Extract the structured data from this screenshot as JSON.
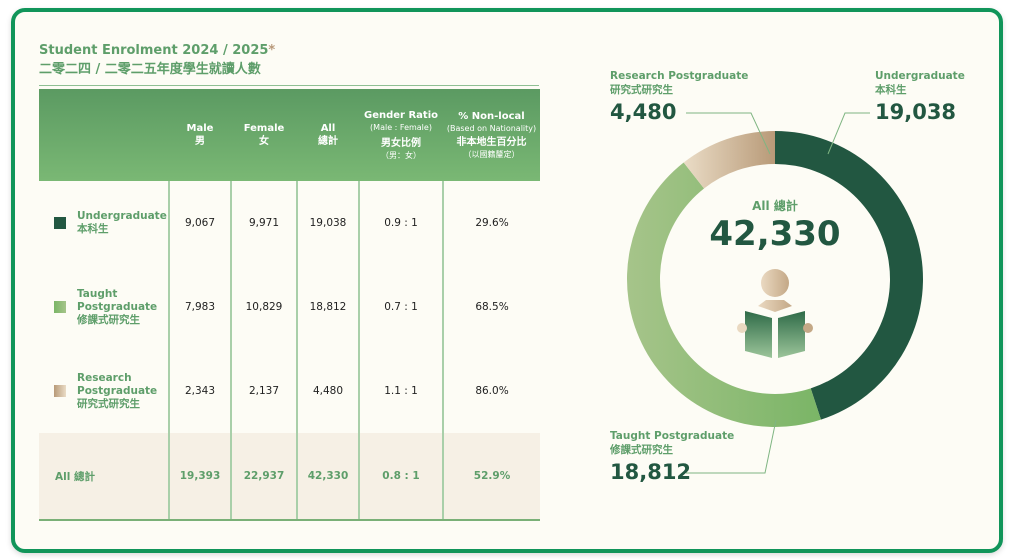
{
  "title": {
    "english": "Student Enrolment 2024 / 2025",
    "asterisk": "*",
    "chinese": "二零二四 / 二零二五年度學生就讀人數"
  },
  "table": {
    "headers": [
      {
        "en": "",
        "zh": "",
        "sub_en": "",
        "sub_zh": ""
      },
      {
        "en": "Male",
        "zh": "男"
      },
      {
        "en": "Female",
        "zh": "女"
      },
      {
        "en": "All",
        "zh": "總計"
      },
      {
        "en": "Gender Ratio",
        "sub_en": "(Male : Female)",
        "zh": "男女比例",
        "sub_zh": "（男：女）"
      },
      {
        "en": "% Non-local",
        "sub_en": "(Based on Nationality)",
        "zh": "非本地生百分比",
        "sub_zh": "（以國籍釐定）"
      }
    ],
    "rows": [
      {
        "label_en": "Undergraduate",
        "label_zh": "本科生",
        "male": "9,067",
        "female": "9,971",
        "all": "19,038",
        "ratio": "0.9 : 1",
        "nonlocal": "29.6%"
      },
      {
        "label_en": "Taught Postgraduate",
        "label_zh": "修課式研究生",
        "male": "7,983",
        "female": "10,829",
        "all": "18,812",
        "ratio": "0.7 : 1",
        "nonlocal": "68.5%"
      },
      {
        "label_en": "Research Postgraduate",
        "label_zh": "研究式研究生",
        "male": "2,343",
        "female": "2,137",
        "all": "4,480",
        "ratio": "1.1 : 1",
        "nonlocal": "86.0%"
      }
    ],
    "total": {
      "label": "All 總計",
      "male": "19,393",
      "female": "22,937",
      "all": "42,330",
      "ratio": "0.8 : 1",
      "nonlocal": "52.9%"
    }
  },
  "colors": {
    "undergraduate": "#225741",
    "taught_light": "#a6c48a",
    "taught_dark": "#7ab566",
    "research_light": "#eadcc6",
    "research_dark": "#b89a78",
    "accent_text": "#5e9e6a",
    "frame": "#11955a"
  },
  "chart_data": {
    "type": "pie",
    "donut": true,
    "title": "All 總計",
    "total_label": "All 總計",
    "total": 42330,
    "total_display": "42,330",
    "start": "top",
    "direction": "clockwise",
    "categories": [
      "Undergraduate 本科生",
      "Taught Postgraduate 修課式研究生",
      "Research Postgraduate 研究式研究生"
    ],
    "values": [
      19038,
      18812,
      4480
    ],
    "slices": [
      {
        "name_en": "Undergraduate",
        "name_zh": "本科生",
        "value": 19038,
        "display": "19,038",
        "callout": "top-right"
      },
      {
        "name_en": "Taught Postgraduate",
        "name_zh": "修課式研究生",
        "value": 18812,
        "display": "18,812",
        "callout": "bottom-left"
      },
      {
        "name_en": "Research Postgraduate",
        "name_zh": "研究式研究生",
        "value": 4480,
        "display": "4,480",
        "callout": "top-left"
      }
    ],
    "center_icon": "person-reading-book-icon"
  }
}
